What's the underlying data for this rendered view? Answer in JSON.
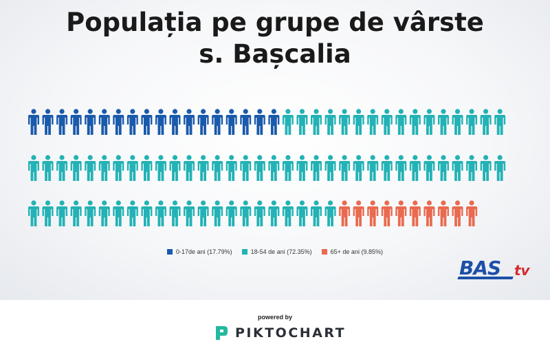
{
  "title": {
    "line1": "Populația pe grupe de vârste",
    "line2": "s. Bașcalia"
  },
  "chart_data": {
    "type": "pictogram",
    "title": "Populația pe grupe de vârste s. Bașcalia",
    "total_icons": 100,
    "icons_per_row": 34,
    "series": [
      {
        "name": "0-17de ani (17.79%)",
        "percent": 17.79,
        "icons": 18,
        "color": "#1a5aab"
      },
      {
        "name": "18-54 de ani (72.35%)",
        "percent": 72.35,
        "icons": 72,
        "color": "#23b2b5"
      },
      {
        "name": "65+ de ani (9.85%)",
        "percent": 9.85,
        "icons": 10,
        "color": "#ea6a4f"
      }
    ],
    "legend_position": "bottom-center"
  },
  "logo": {
    "primary": "BAS",
    "secondary": "tv",
    "primary_color": "#1d4fa8",
    "secondary_color": "#d62b2b"
  },
  "footer": {
    "powered_by": "powered by",
    "brand": "PIKTOCHART",
    "brand_color": "#23b8a0"
  }
}
